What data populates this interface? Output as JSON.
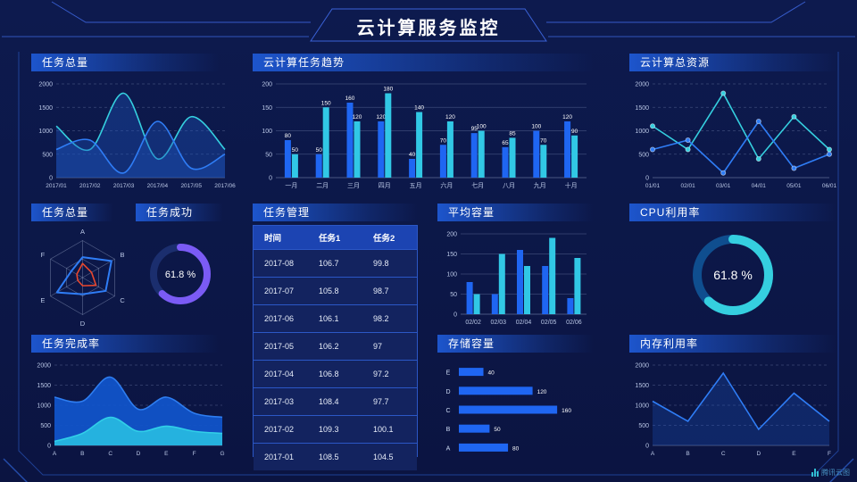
{
  "page": {
    "title": "云计算服务监控",
    "watermark": "腾讯云图",
    "colors": {
      "background": "#0c1747",
      "frame_line": "#3b63d8",
      "accent_blue": "#1f66f2",
      "accent_cyan": "#31c8e5",
      "accent_purple": "#7b5bf5",
      "radar_red": "#e8472e",
      "axis_text": "#bac7e6",
      "text": "#ffffff"
    }
  },
  "chart_data": [
    {
      "id": "taskTotalArea",
      "panel_title": "任务总量",
      "type": "line",
      "smooth": true,
      "markers": false,
      "x": [
        "2017/01",
        "2017/02",
        "2017/03",
        "2017/04",
        "2017/05",
        "2017/06"
      ],
      "ylim": [
        0,
        2000
      ],
      "yticks": [
        0,
        500,
        1000,
        1500,
        2000
      ],
      "grid": "dashed",
      "series": [
        {
          "name": "series-cyan",
          "color": "#35cfdf",
          "fill": "rgba(28,84,190,0.38)",
          "values": [
            1100,
            600,
            1800,
            400,
            1300,
            600
          ]
        },
        {
          "name": "series-blue",
          "color": "#2f7df6",
          "fill": "rgba(28,84,190,0.38)",
          "values": [
            600,
            800,
            100,
            1200,
            200,
            500
          ]
        }
      ]
    },
    {
      "id": "taskTrendBar",
      "panel_title": "云计算任务趋势",
      "type": "bar",
      "show_labels": true,
      "categories": [
        "一月",
        "二月",
        "三月",
        "四月",
        "五月",
        "六月",
        "七月",
        "八月",
        "九月",
        "十月"
      ],
      "ylim": [
        0,
        200
      ],
      "yticks": [
        0,
        50,
        100,
        150,
        200
      ],
      "grid": "solid",
      "series": [
        {
          "name": "任务1",
          "color": "#1f66f2",
          "values": [
            80,
            50,
            160,
            120,
            40,
            70,
            95,
            65,
            100,
            120
          ]
        },
        {
          "name": "任务2",
          "color": "#31c8e5",
          "values": [
            50,
            150,
            120,
            180,
            140,
            120,
            100,
            85,
            70,
            90
          ]
        }
      ]
    },
    {
      "id": "cloudResourceLine",
      "panel_title": "云计算总资源",
      "type": "line",
      "smooth": false,
      "markers": true,
      "x": [
        "01/01",
        "02/01",
        "03/01",
        "04/01",
        "05/01",
        "06/01"
      ],
      "ylim": [
        0,
        2000
      ],
      "yticks": [
        0,
        500,
        1000,
        1500,
        2000
      ],
      "grid": "dashed",
      "series": [
        {
          "name": "series-cyan",
          "color": "#35cfdf",
          "values": [
            1100,
            600,
            1800,
            400,
            1300,
            600
          ]
        },
        {
          "name": "series-blue",
          "color": "#2f7df6",
          "values": [
            600,
            800,
            100,
            1200,
            200,
            500
          ]
        }
      ]
    },
    {
      "id": "taskRadar",
      "panel_title": "任务总量",
      "type": "radar",
      "max": 100,
      "axes": [
        "A",
        "B",
        "C",
        "D",
        "E",
        "F"
      ],
      "series": [
        {
          "name": "series-blue",
          "color": "#2f7df6",
          "width": 2,
          "values": [
            55,
            90,
            72,
            45,
            80,
            35
          ]
        },
        {
          "name": "series-red",
          "color": "#e8472e",
          "width": 1.6,
          "values": [
            38,
            28,
            42,
            22,
            15,
            18
          ]
        }
      ]
    },
    {
      "id": "taskSuccessGauge",
      "panel_title": "任务成功",
      "type": "donut",
      "value": 61.8,
      "label": "61.8 %",
      "color": "#7b5bf5",
      "track": "#1b2e6e",
      "radius": 30,
      "stroke_width": 8,
      "font": 11
    },
    {
      "id": "taskTable",
      "panel_title": "任务管理",
      "type": "table",
      "columns": [
        "时间",
        "任务1",
        "任务2"
      ],
      "rows": [
        [
          "2017-08",
          "106.7",
          "99.8"
        ],
        [
          "2017-07",
          "105.8",
          "98.7"
        ],
        [
          "2017-06",
          "106.1",
          "98.2"
        ],
        [
          "2017-05",
          "106.2",
          "97"
        ],
        [
          "2017-04",
          "106.8",
          "97.2"
        ],
        [
          "2017-03",
          "108.4",
          "97.7"
        ],
        [
          "2017-02",
          "109.3",
          "100.1"
        ],
        [
          "2017-01",
          "108.5",
          "104.5"
        ]
      ]
    },
    {
      "id": "avgCapacityBar",
      "panel_title": "平均容量",
      "type": "bar",
      "show_labels": false,
      "categories": [
        "02/02",
        "02/03",
        "02/04",
        "02/05",
        "02/06"
      ],
      "ylim": [
        0,
        200
      ],
      "yticks": [
        0,
        50,
        100,
        150,
        200
      ],
      "grid": "solid",
      "series": [
        {
          "name": "series-blue",
          "color": "#1f66f2",
          "values": [
            80,
            50,
            160,
            120,
            40
          ]
        },
        {
          "name": "series-cyan",
          "color": "#31c8e5",
          "values": [
            50,
            150,
            120,
            190,
            140
          ]
        }
      ]
    },
    {
      "id": "cpuGauge",
      "panel_title": "CPU利用率",
      "type": "donut",
      "value": 61.8,
      "label": "61.8 %",
      "color": "#35cfdf",
      "track": "#0f4e8f",
      "radius": 40,
      "stroke_width": 10,
      "font": 14
    },
    {
      "id": "storageBar",
      "panel_title": "存储容量",
      "type": "hbar",
      "color": "#1f66f2",
      "scale_max": 170,
      "categories": [
        "E",
        "D",
        "C",
        "B",
        "A"
      ],
      "values": [
        40,
        120,
        160,
        50,
        80
      ]
    },
    {
      "id": "memoryLine",
      "panel_title": "内存利用率",
      "type": "line",
      "smooth": false,
      "markers": false,
      "x": [
        "A",
        "B",
        "C",
        "D",
        "E",
        "F"
      ],
      "ylim": [
        0,
        2000
      ],
      "yticks": [
        0,
        500,
        1000,
        1500,
        2000
      ],
      "grid": "dashed",
      "series": [
        {
          "name": "内存",
          "color": "#2f7df6",
          "fill": "rgba(28,84,190,0.30)",
          "values": [
            1100,
            600,
            1800,
            400,
            1300,
            600
          ]
        }
      ]
    },
    {
      "id": "taskCompletionArea",
      "panel_title": "任务完成率",
      "type": "line",
      "smooth": true,
      "markers": false,
      "x": [
        "A",
        "B",
        "C",
        "D",
        "E",
        "F",
        "G"
      ],
      "ylim": [
        0,
        2000
      ],
      "yticks": [
        0,
        500,
        1000,
        1500,
        2000
      ],
      "grid": "dashed",
      "series": [
        {
          "name": "series-blue",
          "color": "#2e7df0",
          "fill": "rgba(17,86,205,0.92)",
          "values": [
            1200,
            1100,
            1700,
            900,
            1200,
            800,
            700
          ]
        },
        {
          "name": "series-cyan",
          "color": "#31cfe8",
          "fill": "rgba(39,183,224,0.95)",
          "values": [
            100,
            300,
            700,
            350,
            480,
            350,
            300
          ]
        }
      ]
    }
  ]
}
